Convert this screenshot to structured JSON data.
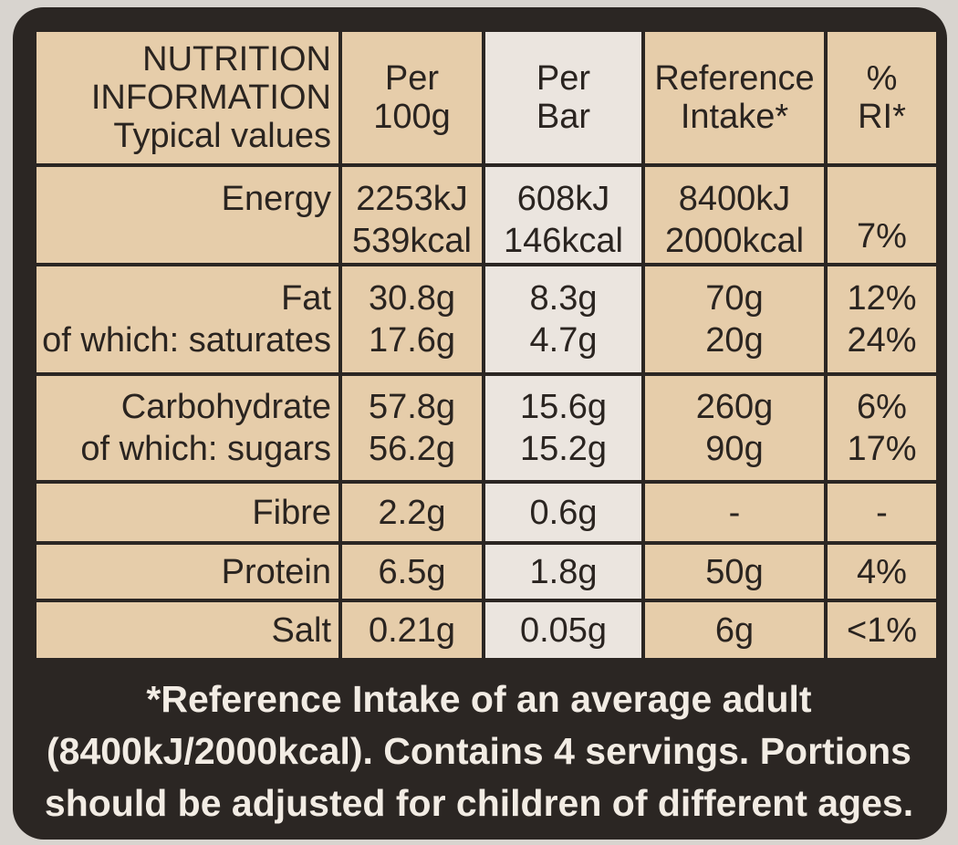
{
  "table": {
    "header": [
      [
        "NUTRITION",
        "INFORMATION",
        "Typical values"
      ],
      [
        "Per",
        "100g"
      ],
      [
        "Per",
        "Bar"
      ],
      [
        "Reference",
        "Intake*"
      ],
      [
        "%",
        "RI*"
      ]
    ],
    "rows": [
      [
        [
          "Energy"
        ],
        [
          "2253kJ",
          "539kcal"
        ],
        [
          "608kJ",
          "146kcal"
        ],
        [
          "8400kJ",
          "2000kcal"
        ],
        [
          "7%"
        ]
      ],
      [
        [
          "Fat",
          "of which: saturates"
        ],
        [
          "30.8g",
          "17.6g"
        ],
        [
          "8.3g",
          "4.7g"
        ],
        [
          "70g",
          "20g"
        ],
        [
          "12%",
          "24%"
        ]
      ],
      [
        [
          "Carbohydrate",
          "of which: sugars"
        ],
        [
          "57.8g",
          "56.2g"
        ],
        [
          "15.6g",
          "15.2g"
        ],
        [
          "260g",
          "90g"
        ],
        [
          "6%",
          "17%"
        ]
      ],
      [
        [
          "Fibre"
        ],
        [
          "2.2g"
        ],
        [
          "0.6g"
        ],
        [
          "-"
        ],
        [
          "-"
        ]
      ],
      [
        [
          "Protein"
        ],
        [
          "6.5g"
        ],
        [
          "1.8g"
        ],
        [
          "50g"
        ],
        [
          "4%"
        ]
      ],
      [
        [
          "Salt"
        ],
        [
          "0.21g"
        ],
        [
          "0.05g"
        ],
        [
          "6g"
        ],
        [
          "<1%"
        ]
      ]
    ]
  },
  "footer": [
    "*Reference Intake of an average adult",
    "(8400kJ/2000kcal). Contains 4 servings. Portions",
    "should be adjusted for children of different ages."
  ]
}
